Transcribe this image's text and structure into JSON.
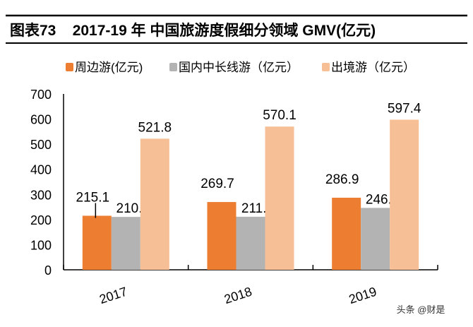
{
  "chart_data": {
    "type": "bar",
    "title": "图表73    2017-19 年 中国旅游度假细分领域 GMV(亿元)",
    "categories": [
      "2017",
      "2018",
      "2019"
    ],
    "series": [
      {
        "name": "周边游(亿元)",
        "color": "#ED7D31",
        "values": [
          215.1,
          269.7,
          286.9
        ]
      },
      {
        "name": "国内中长线游（亿元）",
        "color": "#B3B3B3",
        "values": [
          210.5,
          211.1,
          246.3
        ]
      },
      {
        "name": "出境游（亿元）",
        "color": "#F7BF95",
        "values": [
          521.8,
          570.1,
          597.4
        ]
      }
    ],
    "labels": [
      [
        "215.1",
        "269.7",
        "286.9"
      ],
      [
        "210.5",
        "211.1",
        "246.3"
      ],
      [
        "521.8",
        "570.1",
        "597.4"
      ]
    ],
    "ylim": [
      0,
      700
    ],
    "yticks": [
      "0",
      "100",
      "200",
      "300",
      "400",
      "500",
      "600",
      "700"
    ],
    "grid": false,
    "legend": "top",
    "xlabel": "",
    "ylabel": ""
  },
  "watermark": "头条 @财是"
}
